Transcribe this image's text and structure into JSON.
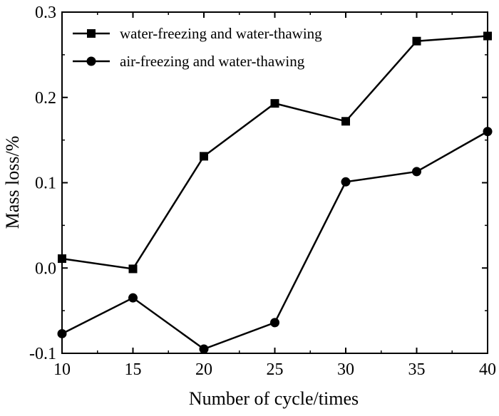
{
  "chart_data": {
    "type": "line",
    "title": "",
    "xlabel": "Number of cycle/times",
    "ylabel": "Mass loss/%",
    "xlim": [
      10,
      40
    ],
    "ylim": [
      -0.1,
      0.3
    ],
    "x_ticks": [
      10,
      15,
      20,
      25,
      30,
      35,
      40
    ],
    "x_tick_labels": [
      "10",
      "15",
      "20",
      "25",
      "30",
      "35",
      "40"
    ],
    "y_ticks": [
      -0.1,
      0.0,
      0.1,
      0.2,
      0.3
    ],
    "y_tick_labels": [
      "-0.1",
      "0.0",
      "0.1",
      "0.2",
      "0.3"
    ],
    "grid": false,
    "legend_position": "top-left",
    "x": [
      10,
      15,
      20,
      25,
      30,
      35,
      40
    ],
    "series": [
      {
        "name": "water-freezing and water-thawing",
        "marker": "square",
        "color": "#000000",
        "values": [
          0.011,
          -0.001,
          0.131,
          0.193,
          0.172,
          0.266,
          0.272
        ]
      },
      {
        "name": "air-freezing and water-thawing",
        "marker": "circle",
        "color": "#000000",
        "values": [
          -0.077,
          -0.035,
          -0.095,
          -0.064,
          0.101,
          0.113,
          0.16
        ]
      }
    ]
  }
}
